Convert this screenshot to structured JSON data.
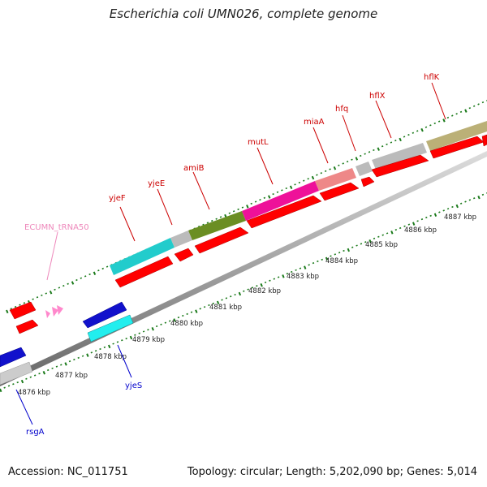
{
  "title": "Escherichia coli UMN026, complete genome",
  "footer": {
    "accession": "Accession: NC_011751",
    "summary": "Topology: circular; Length: 5,202,090 bp; Genes: 5,014"
  },
  "colors": {
    "cds": "#ff0000",
    "minus_strand_cds": "#0000dd",
    "trna": "#ff88cc",
    "feature_label_plus": "#cc0000",
    "feature_label_minus": "#0000cc",
    "trna_label": "#ee88bb",
    "backbone": "#888888",
    "ticks": "#1a7a1a"
  },
  "scale": {
    "unit": "kbp",
    "labels": [
      "4876 kbp",
      "4877 kbp",
      "4878 kbp",
      "4879 kbp",
      "4880 kbp",
      "4881 kbp",
      "4882 kbp",
      "4883 kbp",
      "4884 kbp",
      "4885 kbp",
      "4886 kbp",
      "4887 kbp"
    ]
  },
  "genes_plus": [
    {
      "name": "yjeF",
      "color": "#cc0000"
    },
    {
      "name": "yjeE",
      "color": "#cc0000"
    },
    {
      "name": "amiB",
      "color": "#cc0000"
    },
    {
      "name": "mutL",
      "color": "#cc0000"
    },
    {
      "name": "miaA",
      "color": "#cc0000"
    },
    {
      "name": "hfq",
      "color": "#cc0000"
    },
    {
      "name": "hflX",
      "color": "#cc0000"
    },
    {
      "name": "hflK",
      "color": "#cc0000"
    }
  ],
  "genes_minus": [
    {
      "name": "yjeS",
      "color": "#0000cc"
    },
    {
      "name": "rsgA",
      "color": "#0000cc"
    }
  ],
  "trna": {
    "name": "ECUMN_tRNA50",
    "color": "#ee88bb"
  }
}
